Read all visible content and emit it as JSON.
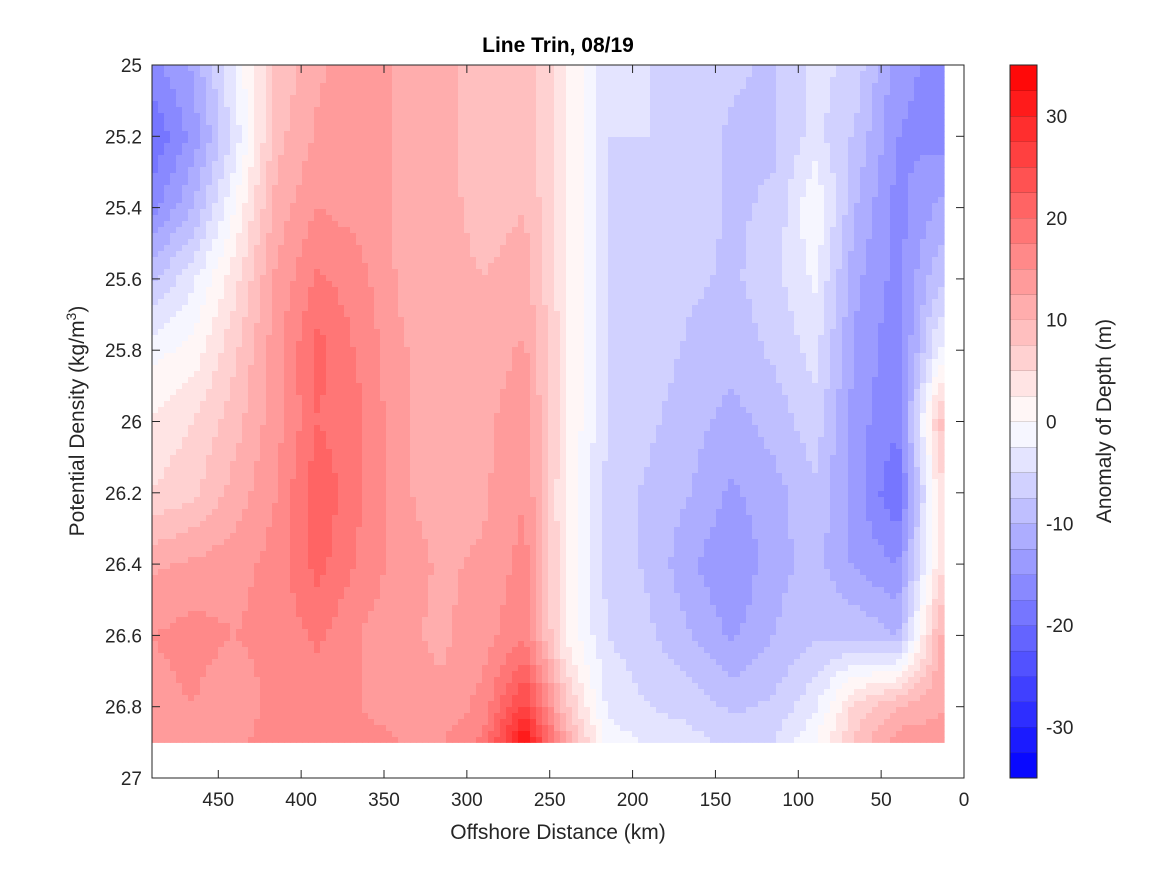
{
  "chart_data": {
    "type": "heatmap",
    "title": "Line Trin, 08/19",
    "xlabel": "Offshore Distance (km)",
    "ylabel_main": "Potential Density (kg/m",
    "ylabel_sup": "3",
    "ylabel_close": ")",
    "colorbar_label": "Anomaly of Depth (m)",
    "xlim": [
      490,
      0
    ],
    "ylim": [
      25,
      27
    ],
    "x_reversed": true,
    "y_reversed": true,
    "xticks": [
      450,
      400,
      350,
      300,
      250,
      200,
      150,
      100,
      50,
      0
    ],
    "yticks": [
      25,
      25.2,
      25.4,
      25.6,
      25.8,
      26,
      26.2,
      26.4,
      26.6,
      26.8,
      27
    ],
    "ytick_labels": [
      "25",
      "25.2",
      "25.4",
      "25.6",
      "25.8",
      "26",
      "26.2",
      "26.4",
      "26.6",
      "26.8",
      "27"
    ],
    "colorbar_range": [
      -35,
      35
    ],
    "colorbar_levels": 28,
    "colorbar_ticks": [
      30,
      20,
      10,
      0,
      -10,
      -20,
      -30
    ],
    "colormap": {
      "negative": "#0000ff",
      "zero": "#ffffff",
      "positive": "#ff0000"
    },
    "data_bottom_sigma": 26.9,
    "x": [
      490,
      465,
      440,
      415,
      390,
      365,
      340,
      315,
      290,
      265,
      240,
      215,
      190,
      165,
      140,
      115,
      90,
      65,
      40,
      15
    ],
    "sigma": [
      25.0,
      25.2,
      25.4,
      25.6,
      25.8,
      26.0,
      26.2,
      26.4,
      26.6,
      26.8,
      26.9
    ],
    "values": [
      [
        -16,
        -12,
        -2,
        8,
        12,
        14,
        12,
        11,
        8,
        9,
        3,
        -5,
        -5,
        -5,
        -7,
        -8,
        -4,
        -6,
        -14,
        -16
      ],
      [
        -20,
        -14,
        -4,
        9,
        13,
        14,
        12,
        11,
        8,
        9,
        3,
        -5,
        -5,
        -6,
        -8,
        -8,
        -4,
        -8,
        -15,
        -16
      ],
      [
        -16,
        -10,
        0,
        11,
        15,
        14,
        12,
        11,
        9,
        10,
        3,
        -5,
        -6,
        -6,
        -8,
        -7,
        0,
        -10,
        -16,
        -12
      ],
      [
        -8,
        -3,
        4,
        13,
        18,
        16,
        12,
        11,
        10,
        11,
        3,
        -5,
        -6,
        -7,
        -8,
        -6,
        -2,
        -12,
        -16,
        -8
      ],
      [
        -1,
        1,
        7,
        14,
        21,
        17,
        13,
        10,
        11,
        13,
        3,
        -5,
        -6,
        -8,
        -9,
        -7,
        -4,
        -13,
        -17,
        -2
      ],
      [
        3,
        5,
        9,
        14,
        20,
        18,
        13,
        10,
        12,
        14,
        3,
        -5,
        -7,
        -9,
        -11,
        -9,
        -6,
        -14,
        -17,
        8
      ],
      [
        5,
        7,
        11,
        15,
        22,
        18,
        13,
        11,
        12,
        15,
        2,
        -6,
        -8,
        -10,
        -13,
        -11,
        -8,
        -14,
        -20,
        4
      ],
      [
        12,
        13,
        14,
        16,
        21,
        17,
        14,
        12,
        13,
        16,
        2,
        -6,
        -8,
        -12,
        -15,
        -11,
        -9,
        -13,
        -15,
        4
      ],
      [
        15,
        16,
        15,
        16,
        18,
        15,
        13,
        12,
        14,
        17,
        2,
        -5,
        -7,
        -10,
        -13,
        -10,
        -8,
        -8,
        -10,
        10
      ],
      [
        14,
        15,
        13,
        16,
        16,
        15,
        14,
        13,
        16,
        26,
        8,
        -3,
        -5,
        -6,
        -8,
        -7,
        -3,
        6,
        10,
        12
      ],
      [
        13,
        15,
        14,
        17,
        17,
        16,
        15,
        15,
        18,
        33,
        12,
        -1,
        -3,
        -4,
        -6,
        -5,
        0,
        8,
        14,
        14
      ]
    ]
  }
}
